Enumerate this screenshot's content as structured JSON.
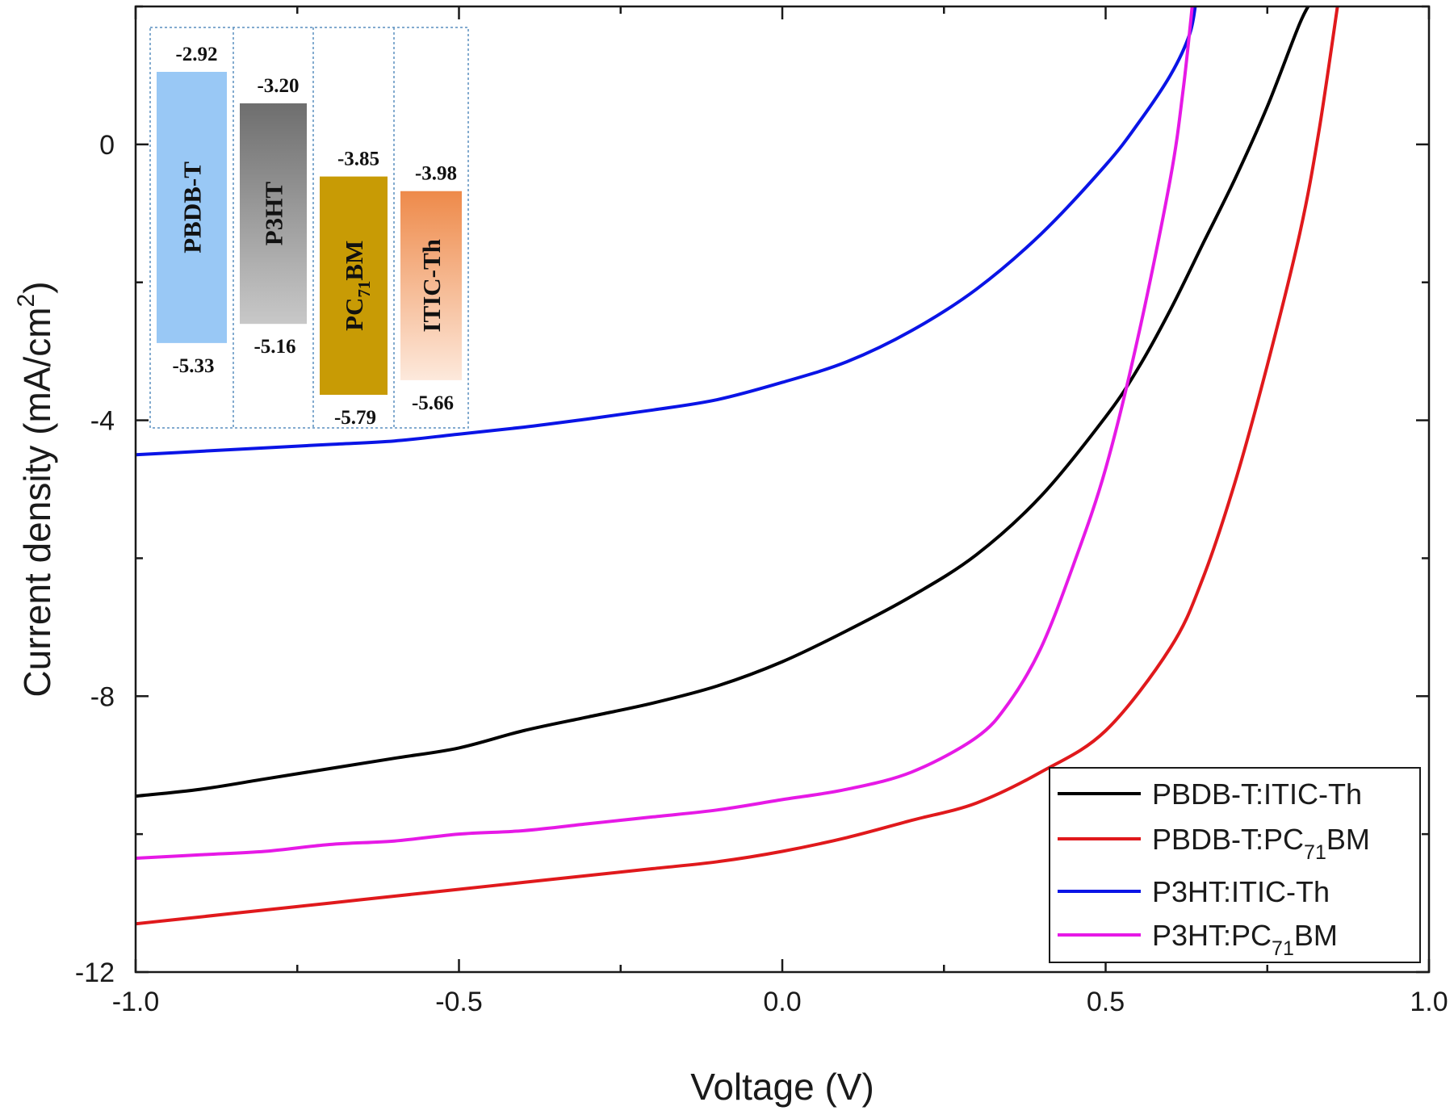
{
  "chart_data": {
    "type": "line",
    "title": "",
    "xlabel": "Voltage (V)",
    "ylabel": {
      "main": "Current density (mA/cm",
      "sup": "2",
      "close": ")"
    },
    "xlim": [
      -1.0,
      1.0
    ],
    "ylim": [
      -12,
      2
    ],
    "x_ticks": [
      -1.0,
      -0.5,
      0.0,
      0.5,
      1.0
    ],
    "x_tick_labels": [
      "-1.0",
      "-0.5",
      "0.0",
      "0.5",
      "1.0"
    ],
    "y_ticks": [
      -12,
      -8,
      -4,
      0
    ],
    "y_tick_labels": [
      "-12",
      "-8",
      "-4",
      "0"
    ],
    "grid": false,
    "legend_position": "bottom-right",
    "series": [
      {
        "name": "PBDB-T:ITIC-Th",
        "legend": {
          "pre": "PBDB-T:ITIC-Th",
          "sub": "",
          "post": ""
        },
        "color": "#000000",
        "points": [
          [
            -1.0,
            -9.45
          ],
          [
            -0.9,
            -9.35
          ],
          [
            -0.8,
            -9.2
          ],
          [
            -0.7,
            -9.05
          ],
          [
            -0.6,
            -8.9
          ],
          [
            -0.5,
            -8.75
          ],
          [
            -0.4,
            -8.5
          ],
          [
            -0.3,
            -8.3
          ],
          [
            -0.2,
            -8.1
          ],
          [
            -0.1,
            -7.85
          ],
          [
            0.0,
            -7.5
          ],
          [
            0.1,
            -7.05
          ],
          [
            0.2,
            -6.55
          ],
          [
            0.3,
            -5.95
          ],
          [
            0.4,
            -5.1
          ],
          [
            0.5,
            -3.95
          ],
          [
            0.55,
            -3.25
          ],
          [
            0.6,
            -2.4
          ],
          [
            0.65,
            -1.45
          ],
          [
            0.7,
            -0.5
          ],
          [
            0.75,
            0.55
          ],
          [
            0.8,
            1.75
          ],
          [
            0.82,
            2.1
          ]
        ]
      },
      {
        "name": "PBDB-T:PC71BM",
        "legend": {
          "pre": "PBDB-T:PC",
          "sub": "71",
          "post": "BM"
        },
        "color": "#e0191c",
        "points": [
          [
            -1.0,
            -11.3
          ],
          [
            -0.9,
            -11.2
          ],
          [
            -0.8,
            -11.1
          ],
          [
            -0.7,
            -11.0
          ],
          [
            -0.6,
            -10.9
          ],
          [
            -0.5,
            -10.8
          ],
          [
            -0.4,
            -10.7
          ],
          [
            -0.3,
            -10.6
          ],
          [
            -0.2,
            -10.5
          ],
          [
            -0.1,
            -10.4
          ],
          [
            0.0,
            -10.25
          ],
          [
            0.1,
            -10.05
          ],
          [
            0.2,
            -9.8
          ],
          [
            0.3,
            -9.55
          ],
          [
            0.4,
            -9.1
          ],
          [
            0.5,
            -8.5
          ],
          [
            0.6,
            -7.3
          ],
          [
            0.65,
            -6.3
          ],
          [
            0.7,
            -4.9
          ],
          [
            0.75,
            -3.2
          ],
          [
            0.8,
            -1.3
          ],
          [
            0.83,
            0.2
          ],
          [
            0.86,
            2.1
          ]
        ]
      },
      {
        "name": "P3HT:ITIC-Th",
        "legend": {
          "pre": "P3HT:ITIC-Th",
          "sub": "",
          "post": ""
        },
        "color": "#0a14e6",
        "points": [
          [
            -1.0,
            -4.5
          ],
          [
            -0.9,
            -4.45
          ],
          [
            -0.8,
            -4.4
          ],
          [
            -0.7,
            -4.35
          ],
          [
            -0.6,
            -4.3
          ],
          [
            -0.5,
            -4.2
          ],
          [
            -0.4,
            -4.1
          ],
          [
            -0.3,
            -3.98
          ],
          [
            -0.2,
            -3.85
          ],
          [
            -0.1,
            -3.7
          ],
          [
            0.0,
            -3.45
          ],
          [
            0.1,
            -3.15
          ],
          [
            0.2,
            -2.7
          ],
          [
            0.3,
            -2.1
          ],
          [
            0.4,
            -1.3
          ],
          [
            0.5,
            -0.3
          ],
          [
            0.55,
            0.3
          ],
          [
            0.6,
            1.0
          ],
          [
            0.63,
            1.6
          ],
          [
            0.64,
            2.1
          ]
        ]
      },
      {
        "name": "P3HT:PC71BM",
        "legend": {
          "pre": "P3HT:PC",
          "sub": "71",
          "post": "BM"
        },
        "color": "#e619e6",
        "points": [
          [
            -1.0,
            -10.35
          ],
          [
            -0.9,
            -10.3
          ],
          [
            -0.8,
            -10.25
          ],
          [
            -0.7,
            -10.15
          ],
          [
            -0.6,
            -10.1
          ],
          [
            -0.5,
            -10.0
          ],
          [
            -0.4,
            -9.95
          ],
          [
            -0.3,
            -9.85
          ],
          [
            -0.2,
            -9.75
          ],
          [
            -0.1,
            -9.65
          ],
          [
            0.0,
            -9.5
          ],
          [
            0.1,
            -9.35
          ],
          [
            0.2,
            -9.1
          ],
          [
            0.3,
            -8.6
          ],
          [
            0.35,
            -8.1
          ],
          [
            0.4,
            -7.3
          ],
          [
            0.45,
            -6.1
          ],
          [
            0.5,
            -4.7
          ],
          [
            0.55,
            -2.8
          ],
          [
            0.6,
            -0.5
          ],
          [
            0.62,
            0.8
          ],
          [
            0.635,
            2.1
          ]
        ]
      }
    ],
    "inset": {
      "type": "energy-level-diagram",
      "materials": [
        {
          "label": "PBDB-T",
          "label_pre": "PBDB-T",
          "label_sub": "",
          "label_post": "",
          "lumo": "-2.92",
          "homo": "-5.33",
          "lumo_value": -2.92,
          "homo_value": -5.33,
          "color_top": "#99c8f5",
          "color_bottom": "#99c8f5"
        },
        {
          "label": "P3HT",
          "label_pre": "P3HT",
          "label_sub": "",
          "label_post": "",
          "lumo": "-3.20",
          "homo": "-5.16",
          "lumo_value": -3.2,
          "homo_value": -5.16,
          "color_top": "#6e6e6e",
          "color_bottom": "#c8c8c8"
        },
        {
          "label": "PC71BM",
          "label_pre": "PC",
          "label_sub": "71",
          "label_post": "BM",
          "lumo": "-3.85",
          "homo": "-5.79",
          "lumo_value": -3.85,
          "homo_value": -5.79,
          "color_top": "#c89b05",
          "color_bottom": "#c89b05"
        },
        {
          "label": "ITIC-Th",
          "label_pre": "ITIC-Th",
          "label_sub": "",
          "label_post": "",
          "lumo": "-3.98",
          "homo": "-5.66",
          "lumo_value": -3.98,
          "homo_value": -5.66,
          "color_top": "#ee8a4a",
          "color_bottom": "#fde9dc"
        }
      ]
    }
  }
}
